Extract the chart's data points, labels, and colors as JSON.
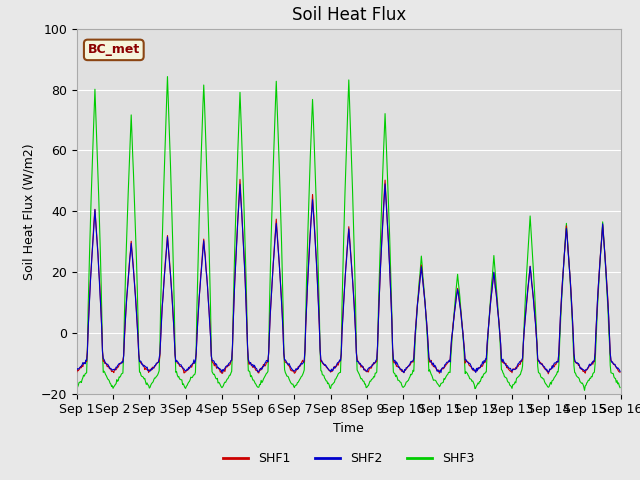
{
  "title": "Soil Heat Flux",
  "ylabel": "Soil Heat Flux (W/m2)",
  "xlabel": "Time",
  "ylim": [
    -20,
    100
  ],
  "xlim_hours": [
    0,
    360
  ],
  "background_color": "#e8e8e8",
  "plot_bg_color": "#e0e0e0",
  "annotation_label": "BC_met",
  "annotation_box_color": "#f5f5dc",
  "annotation_border_color": "#8B4513",
  "annotation_text_color": "#8B0000",
  "tick_labels": [
    "Sep 1",
    "Sep 2",
    "Sep 3",
    "Sep 4",
    "Sep 5",
    "Sep 6",
    "Sep 7",
    "Sep 8",
    "Sep 9",
    "Sep 10",
    "Sep 11",
    "Sep 12",
    "Sep 13",
    "Sep 14",
    "Sep 15",
    "Sep 16"
  ],
  "shf1_color": "#cc0000",
  "shf2_color": "#0000cc",
  "shf3_color": "#00cc00",
  "line_width": 0.8,
  "legend_labels": [
    "SHF1",
    "SHF2",
    "SHF3"
  ],
  "shf1_peaks": [
    41,
    30,
    32,
    31,
    50,
    37,
    45,
    35,
    50,
    22,
    15,
    20,
    22,
    35,
    36
  ],
  "shf3_peaks": [
    80,
    71,
    84,
    82,
    79,
    83,
    77,
    83,
    72,
    25,
    19,
    25,
    38,
    36,
    36
  ],
  "night_min": -18,
  "shf1_night": -13,
  "shf3_night": -18
}
